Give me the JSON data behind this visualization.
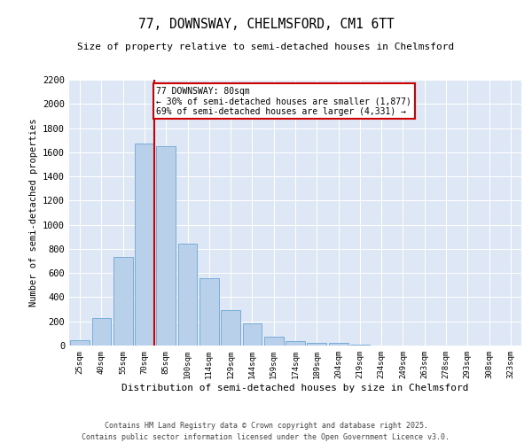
{
  "title": "77, DOWNSWAY, CHELMSFORD, CM1 6TT",
  "subtitle": "Size of property relative to semi-detached houses in Chelmsford",
  "xlabel": "Distribution of semi-detached houses by size in Chelmsford",
  "ylabel": "Number of semi-detached properties",
  "categories": [
    "25sqm",
    "40sqm",
    "55sqm",
    "70sqm",
    "85sqm",
    "100sqm",
    "114sqm",
    "129sqm",
    "144sqm",
    "159sqm",
    "174sqm",
    "189sqm",
    "204sqm",
    "219sqm",
    "234sqm",
    "249sqm",
    "263sqm",
    "278sqm",
    "293sqm",
    "308sqm",
    "323sqm"
  ],
  "values": [
    45,
    225,
    730,
    1670,
    1650,
    845,
    560,
    295,
    185,
    70,
    38,
    22,
    20,
    5,
    0,
    0,
    0,
    0,
    0,
    0,
    0
  ],
  "bar_color": "#b8d0ea",
  "bar_edge_color": "#7aacd6",
  "property_line_color": "#cc0000",
  "annotation_text": "77 DOWNSWAY: 80sqm\n← 30% of semi-detached houses are smaller (1,877)\n69% of semi-detached houses are larger (4,331) →",
  "annotation_box_color": "#cc0000",
  "ylim": [
    0,
    2200
  ],
  "yticks": [
    0,
    200,
    400,
    600,
    800,
    1000,
    1200,
    1400,
    1600,
    1800,
    2000,
    2200
  ],
  "background_color": "#dde7f5",
  "grid_color": "#ffffff",
  "footer1": "Contains HM Land Registry data © Crown copyright and database right 2025.",
  "footer2": "Contains public sector information licensed under the Open Government Licence v3.0."
}
